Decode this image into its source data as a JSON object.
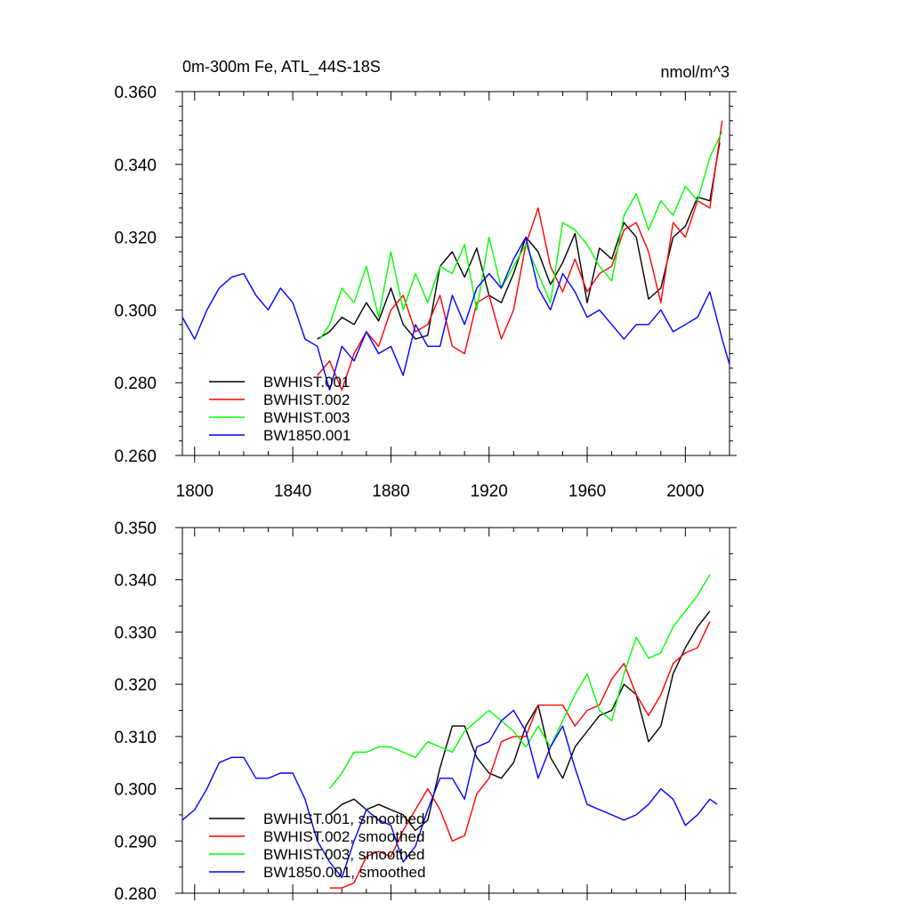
{
  "chart_data": [
    {
      "type": "line",
      "title": "0m-300m Fe, ATL_44S-18S",
      "units": "nmol/m^3",
      "xlabel": "",
      "ylabel": "",
      "xlim": [
        1795,
        2018
      ],
      "ylim": [
        0.26,
        0.36
      ],
      "x_ticks": [
        1800,
        1840,
        1880,
        1920,
        1960,
        2000
      ],
      "x_tick_labels": [
        "1800",
        "1840",
        "1880",
        "1920",
        "1960",
        "2000"
      ],
      "y_ticks": [
        0.26,
        0.28,
        0.3,
        0.32,
        0.34,
        0.36
      ],
      "y_tick_labels": [
        "0.260",
        "0.280",
        "0.300",
        "0.320",
        "0.340",
        "0.360"
      ],
      "legend_position": "bottom-left",
      "series": [
        {
          "name": "BWHIST.001",
          "color": "#000000",
          "x": [
            1850,
            1855,
            1860,
            1865,
            1870,
            1875,
            1880,
            1885,
            1890,
            1895,
            1900,
            1905,
            1910,
            1915,
            1920,
            1925,
            1930,
            1935,
            1940,
            1945,
            1950,
            1955,
            1960,
            1965,
            1970,
            1975,
            1980,
            1985,
            1990,
            1995,
            2000,
            2005,
            2010,
            2014
          ],
          "y": [
            0.292,
            0.294,
            0.298,
            0.296,
            0.302,
            0.297,
            0.306,
            0.296,
            0.292,
            0.293,
            0.312,
            0.316,
            0.309,
            0.317,
            0.304,
            0.302,
            0.31,
            0.32,
            0.316,
            0.307,
            0.313,
            0.321,
            0.302,
            0.317,
            0.314,
            0.324,
            0.32,
            0.303,
            0.306,
            0.32,
            0.323,
            0.331,
            0.33,
            0.346
          ]
        },
        {
          "name": "BWHIST.002",
          "color": "#ff0000",
          "x": [
            1850,
            1855,
            1860,
            1865,
            1870,
            1875,
            1880,
            1885,
            1890,
            1895,
            1900,
            1905,
            1910,
            1915,
            1920,
            1925,
            1930,
            1935,
            1940,
            1945,
            1950,
            1955,
            1960,
            1965,
            1970,
            1975,
            1980,
            1985,
            1990,
            1995,
            2000,
            2005,
            2010,
            2015
          ],
          "y": [
            0.282,
            0.286,
            0.278,
            0.288,
            0.294,
            0.29,
            0.3,
            0.304,
            0.294,
            0.296,
            0.304,
            0.29,
            0.288,
            0.302,
            0.304,
            0.292,
            0.3,
            0.318,
            0.328,
            0.312,
            0.305,
            0.314,
            0.305,
            0.31,
            0.312,
            0.322,
            0.324,
            0.316,
            0.302,
            0.324,
            0.32,
            0.33,
            0.328,
            0.352
          ]
        },
        {
          "name": "BWHIST.003",
          "color": "#00ff00",
          "x": [
            1851,
            1855,
            1860,
            1865,
            1870,
            1875,
            1880,
            1885,
            1890,
            1895,
            1900,
            1905,
            1910,
            1915,
            1920,
            1925,
            1930,
            1935,
            1940,
            1945,
            1950,
            1955,
            1960,
            1965,
            1970,
            1975,
            1980,
            1985,
            1990,
            1995,
            2000,
            2005,
            2010,
            2015
          ],
          "y": [
            0.292,
            0.296,
            0.306,
            0.302,
            0.312,
            0.298,
            0.316,
            0.3,
            0.31,
            0.302,
            0.312,
            0.31,
            0.318,
            0.3,
            0.32,
            0.306,
            0.312,
            0.318,
            0.31,
            0.302,
            0.324,
            0.322,
            0.318,
            0.312,
            0.308,
            0.326,
            0.332,
            0.322,
            0.33,
            0.326,
            0.334,
            0.33,
            0.342,
            0.349
          ]
        },
        {
          "name": "BW1850.001",
          "color": "#0000ff",
          "x": [
            1795,
            1800,
            1805,
            1810,
            1815,
            1820,
            1825,
            1830,
            1835,
            1840,
            1845,
            1850,
            1855,
            1860,
            1865,
            1870,
            1875,
            1880,
            1885,
            1890,
            1895,
            1900,
            1905,
            1910,
            1915,
            1920,
            1925,
            1930,
            1935,
            1940,
            1945,
            1950,
            1955,
            1960,
            1965,
            1970,
            1975,
            1980,
            1985,
            1990,
            1995,
            2000,
            2005,
            2010,
            2015,
            2018
          ],
          "y": [
            0.298,
            0.292,
            0.3,
            0.306,
            0.309,
            0.31,
            0.304,
            0.3,
            0.306,
            0.302,
            0.292,
            0.29,
            0.278,
            0.29,
            0.286,
            0.294,
            0.288,
            0.29,
            0.282,
            0.296,
            0.29,
            0.29,
            0.304,
            0.296,
            0.306,
            0.31,
            0.306,
            0.314,
            0.32,
            0.306,
            0.3,
            0.31,
            0.305,
            0.298,
            0.3,
            0.296,
            0.292,
            0.296,
            0.296,
            0.3,
            0.294,
            0.296,
            0.298,
            0.305,
            0.292,
            0.285
          ]
        }
      ]
    },
    {
      "type": "line",
      "title": "",
      "xlabel": "",
      "ylabel": "",
      "xlim": [
        1795,
        2018
      ],
      "ylim": [
        0.28,
        0.35
      ],
      "x_ticks": [
        1800,
        1840,
        1880,
        1920,
        1960,
        2000
      ],
      "y_ticks": [
        0.28,
        0.29,
        0.3,
        0.31,
        0.32,
        0.33,
        0.34,
        0.35
      ],
      "y_tick_labels": [
        "0.280",
        "0.290",
        "0.300",
        "0.310",
        "0.320",
        "0.330",
        "0.340",
        "0.350"
      ],
      "legend_position": "bottom-left",
      "series": [
        {
          "name": "BWHIST.001, smoothed",
          "color": "#000000",
          "x": [
            1855,
            1860,
            1865,
            1870,
            1875,
            1880,
            1885,
            1890,
            1895,
            1900,
            1905,
            1910,
            1915,
            1920,
            1925,
            1930,
            1935,
            1940,
            1945,
            1950,
            1955,
            1960,
            1965,
            1970,
            1975,
            1980,
            1985,
            1990,
            1995,
            2000,
            2005,
            2010
          ],
          "y": [
            0.295,
            0.297,
            0.298,
            0.296,
            0.297,
            0.296,
            0.295,
            0.292,
            0.294,
            0.304,
            0.312,
            0.312,
            0.306,
            0.303,
            0.302,
            0.305,
            0.312,
            0.316,
            0.306,
            0.302,
            0.308,
            0.311,
            0.314,
            0.315,
            0.32,
            0.318,
            0.309,
            0.312,
            0.322,
            0.327,
            0.331,
            0.334
          ]
        },
        {
          "name": "BWHIST.002, smoothed",
          "color": "#ff0000",
          "x": [
            1855,
            1860,
            1865,
            1870,
            1875,
            1880,
            1885,
            1890,
            1895,
            1900,
            1905,
            1910,
            1915,
            1920,
            1925,
            1930,
            1935,
            1940,
            1945,
            1950,
            1955,
            1960,
            1965,
            1970,
            1975,
            1980,
            1985,
            1990,
            1995,
            2000,
            2005,
            2010
          ],
          "y": [
            0.281,
            0.281,
            0.282,
            0.287,
            0.288,
            0.287,
            0.292,
            0.296,
            0.3,
            0.296,
            0.29,
            0.291,
            0.299,
            0.302,
            0.309,
            0.31,
            0.31,
            0.316,
            0.316,
            0.316,
            0.312,
            0.315,
            0.316,
            0.321,
            0.324,
            0.318,
            0.314,
            0.318,
            0.324,
            0.326,
            0.327,
            0.332
          ]
        },
        {
          "name": "BWHIST.003, smoothed",
          "color": "#00ff00",
          "x": [
            1855,
            1860,
            1865,
            1870,
            1875,
            1880,
            1885,
            1890,
            1895,
            1900,
            1905,
            1910,
            1915,
            1920,
            1925,
            1930,
            1935,
            1940,
            1945,
            1950,
            1955,
            1960,
            1965,
            1970,
            1975,
            1980,
            1985,
            1990,
            1995,
            2000,
            2005,
            2010
          ],
          "y": [
            0.3,
            0.303,
            0.307,
            0.307,
            0.308,
            0.308,
            0.307,
            0.306,
            0.309,
            0.308,
            0.307,
            0.311,
            0.313,
            0.315,
            0.313,
            0.311,
            0.308,
            0.312,
            0.308,
            0.313,
            0.318,
            0.322,
            0.315,
            0.313,
            0.322,
            0.329,
            0.325,
            0.326,
            0.331,
            0.334,
            0.337,
            0.341
          ]
        },
        {
          "name": "BW1850.001, smoothed",
          "color": "#0000ff",
          "x": [
            1795,
            1800,
            1805,
            1810,
            1815,
            1820,
            1825,
            1830,
            1835,
            1840,
            1845,
            1850,
            1855,
            1860,
            1865,
            1870,
            1875,
            1880,
            1885,
            1890,
            1895,
            1900,
            1905,
            1910,
            1915,
            1920,
            1925,
            1930,
            1935,
            1940,
            1945,
            1950,
            1955,
            1960,
            1965,
            1970,
            1975,
            1980,
            1985,
            1990,
            1995,
            2000,
            2005,
            2010,
            2013
          ],
          "y": [
            0.294,
            0.296,
            0.3,
            0.305,
            0.306,
            0.306,
            0.302,
            0.302,
            0.303,
            0.303,
            0.298,
            0.29,
            0.286,
            0.283,
            0.29,
            0.296,
            0.294,
            0.293,
            0.286,
            0.289,
            0.296,
            0.302,
            0.302,
            0.298,
            0.308,
            0.309,
            0.313,
            0.315,
            0.311,
            0.302,
            0.308,
            0.312,
            0.304,
            0.297,
            0.296,
            0.295,
            0.294,
            0.295,
            0.297,
            0.3,
            0.298,
            0.293,
            0.295,
            0.298,
            0.297
          ]
        }
      ]
    }
  ]
}
